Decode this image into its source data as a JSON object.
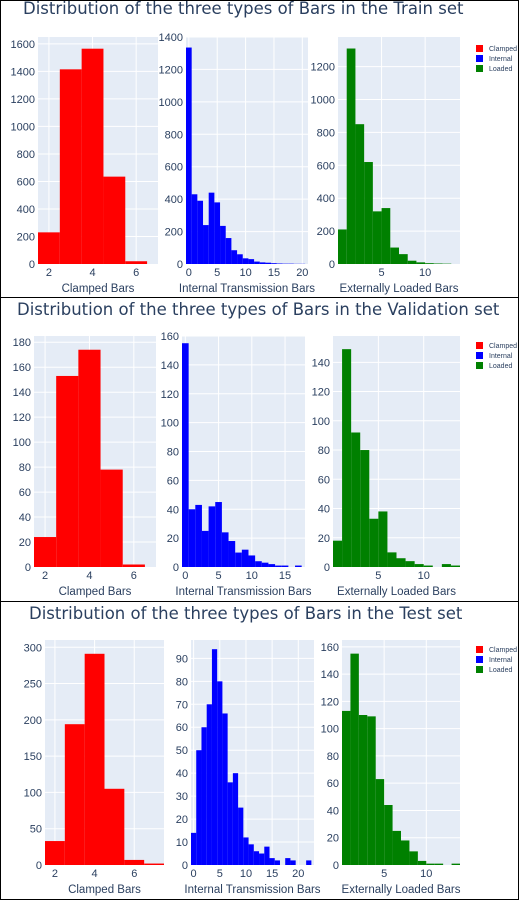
{
  "chart_data": [
    {
      "type": "bar",
      "title": "Distribution of the three types of Bars in the Train set",
      "legend": {
        "placement": "top-right",
        "entries": [
          "Clamped",
          "Internal",
          "Loaded"
        ]
      },
      "colors": {
        "Clamped": "#ff0000",
        "Internal": "#0000ff",
        "Loaded": "#008000"
      },
      "subplots": [
        {
          "series": "Clamped",
          "xlabel": "Clamped Bars",
          "xlim": [
            1.5,
            7
          ],
          "ylim": [
            0,
            1650
          ],
          "xticks": [
            2,
            4,
            6
          ],
          "yticks": [
            0,
            200,
            400,
            600,
            800,
            1000,
            1200,
            1400,
            1600
          ],
          "bin_start": 1.5,
          "bin_width": 1,
          "values": [
            230,
            1415,
            1565,
            635,
            20,
            0
          ]
        },
        {
          "series": "Internal",
          "xlabel": "Internal Transmission Bars",
          "xlim": [
            -0.5,
            21
          ],
          "ylim": [
            0,
            1400
          ],
          "xticks": [
            0,
            5,
            10,
            15,
            20
          ],
          "yticks": [
            0,
            200,
            400,
            600,
            800,
            1000,
            1200,
            1400
          ],
          "bin_start": -0.5,
          "bin_width": 1,
          "values": [
            1335,
            430,
            390,
            240,
            440,
            380,
            235,
            160,
            85,
            60,
            35,
            30,
            15,
            10,
            8,
            5,
            3,
            2,
            2,
            1,
            1
          ]
        },
        {
          "series": "Loaded",
          "xlabel": "Externally Loaded Bars",
          "xlim": [
            0,
            14
          ],
          "ylim": [
            0,
            1380
          ],
          "xticks": [
            5,
            10
          ],
          "yticks": [
            0,
            200,
            400,
            600,
            800,
            1000,
            1200
          ],
          "bin_start": 0,
          "bin_width": 1,
          "values": [
            210,
            1310,
            850,
            620,
            320,
            340,
            100,
            60,
            20,
            10,
            5,
            3,
            2,
            0
          ]
        }
      ]
    },
    {
      "type": "bar",
      "title": "Distribution of the three types of Bars in the Validation set",
      "legend": {
        "placement": "top-right",
        "entries": [
          "Clamped",
          "Internal",
          "Loaded"
        ]
      },
      "colors": {
        "Clamped": "#ff0000",
        "Internal": "#0000ff",
        "Loaded": "#008000"
      },
      "subplots": [
        {
          "series": "Clamped",
          "xlabel": "Clamped Bars",
          "xlim": [
            1.5,
            7
          ],
          "ylim": [
            0,
            185
          ],
          "xticks": [
            2,
            4,
            6
          ],
          "yticks": [
            0,
            20,
            40,
            60,
            80,
            100,
            120,
            140,
            160,
            180
          ],
          "bin_start": 1.5,
          "bin_width": 1,
          "values": [
            24,
            153,
            174,
            78,
            2,
            0
          ]
        },
        {
          "series": "Internal",
          "xlabel": "Internal Transmission Bars",
          "xlim": [
            -0.5,
            18
          ],
          "ylim": [
            0,
            160
          ],
          "xticks": [
            0,
            5,
            10,
            15
          ],
          "yticks": [
            0,
            20,
            40,
            60,
            80,
            100,
            120,
            140,
            160
          ],
          "bin_start": -0.5,
          "bin_width": 1,
          "values": [
            155,
            40,
            43,
            25,
            42,
            45,
            24,
            18,
            10,
            12,
            8,
            4,
            3,
            2,
            1,
            1,
            0,
            1
          ]
        },
        {
          "series": "Loaded",
          "xlabel": "Externally Loaded Bars",
          "xlim": [
            0,
            14
          ],
          "ylim": [
            0,
            158
          ],
          "xticks": [
            5,
            10
          ],
          "yticks": [
            0,
            20,
            40,
            60,
            80,
            100,
            120,
            140
          ],
          "bin_start": 0,
          "bin_width": 1,
          "values": [
            18,
            149,
            92,
            80,
            33,
            38,
            10,
            6,
            4,
            2,
            1,
            0,
            2,
            1
          ]
        }
      ]
    },
    {
      "type": "bar",
      "title": "Distribution of the three types of Bars in the Test set",
      "legend": {
        "placement": "top-right",
        "entries": [
          "Clamped",
          "Internal",
          "Loaded"
        ]
      },
      "colors": {
        "Clamped": "#ff0000",
        "Internal": "#0000ff",
        "Loaded": "#008000"
      },
      "subplots": [
        {
          "series": "Clamped",
          "xlabel": "Clamped Bars",
          "xlim": [
            1.5,
            7.5
          ],
          "ylim": [
            0,
            310
          ],
          "xticks": [
            2,
            4,
            6
          ],
          "yticks": [
            0,
            50,
            100,
            150,
            200,
            250,
            300
          ],
          "bin_start": 1.5,
          "bin_width": 1,
          "values": [
            33,
            194,
            291,
            105,
            7,
            2
          ]
        },
        {
          "series": "Internal",
          "xlabel": "Internal Transmission Bars",
          "xlim": [
            -0.5,
            23
          ],
          "ylim": [
            0,
            98
          ],
          "xticks": [
            0,
            5,
            10,
            15,
            20
          ],
          "yticks": [
            0,
            10,
            20,
            30,
            40,
            50,
            60,
            70,
            80,
            90
          ],
          "bin_start": -0.5,
          "bin_width": 1,
          "values": [
            14,
            50,
            60,
            70,
            94,
            80,
            66,
            36,
            40,
            25,
            12,
            9,
            6,
            5,
            8,
            3,
            2,
            0,
            3,
            2,
            0,
            0,
            2
          ]
        },
        {
          "series": "Loaded",
          "xlabel": "Externally Loaded Bars",
          "xlim": [
            0,
            14
          ],
          "ylim": [
            0,
            165
          ],
          "xticks": [
            5,
            10
          ],
          "yticks": [
            0,
            20,
            40,
            60,
            80,
            100,
            120,
            140,
            160
          ],
          "bin_start": 0,
          "bin_width": 1,
          "values": [
            113,
            155,
            110,
            109,
            63,
            44,
            25,
            18,
            10,
            3,
            1,
            1,
            0,
            1
          ]
        }
      ]
    }
  ]
}
